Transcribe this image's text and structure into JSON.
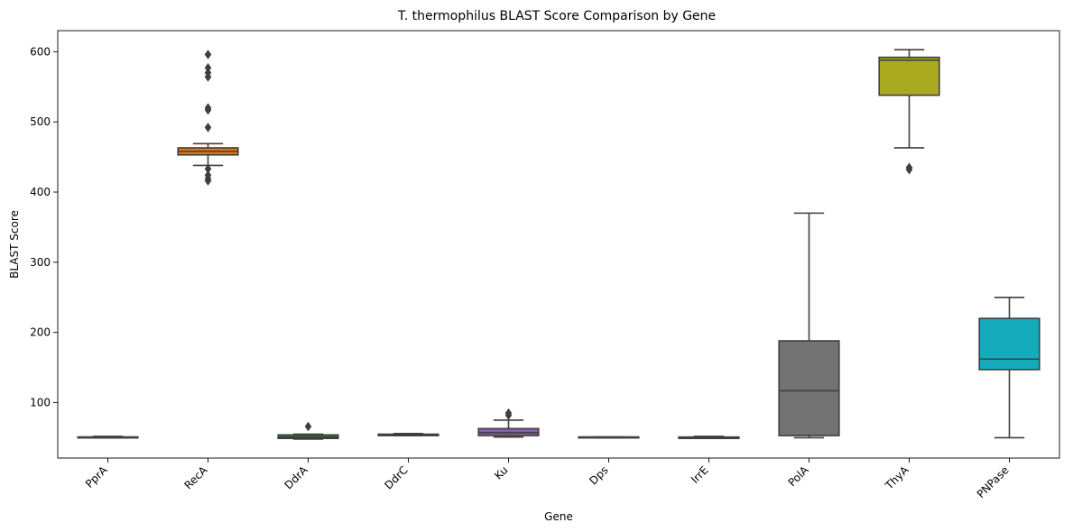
{
  "chart_data": {
    "type": "box",
    "title": "T. thermophilus BLAST Score Comparison by Gene",
    "xlabel": "Gene",
    "ylabel": "BLAST Score",
    "ylim": [
      21,
      630
    ],
    "yticks": [
      100,
      200,
      300,
      400,
      500,
      600
    ],
    "grid": false,
    "categories": [
      "PprA",
      "RecA",
      "DdrA",
      "DdrC",
      "Ku",
      "Dps",
      "IrrE",
      "PolA",
      "ThyA",
      "PNPase"
    ],
    "boxes": [
      {
        "category": "PprA",
        "color": "#1f77b4",
        "whisker_low": 50,
        "q1": 50,
        "median": 51,
        "q3": 51,
        "whisker_high": 52,
        "outliers": []
      },
      {
        "category": "RecA",
        "color": "#ff7f0e",
        "whisker_low": 438,
        "q1": 453,
        "median": 458,
        "q3": 463,
        "whisker_high": 469,
        "outliers": [
          416,
          419,
          424,
          433,
          492,
          517,
          520,
          564,
          570,
          577,
          596
        ]
      },
      {
        "category": "DdrA",
        "color": "#2ca02c",
        "whisker_low": 48,
        "q1": 49,
        "median": 51,
        "q3": 54,
        "whisker_high": 55,
        "outliers": [
          66
        ]
      },
      {
        "category": "DdrC",
        "color": "#d62728",
        "whisker_low": 53,
        "q1": 53,
        "median": 54,
        "q3": 55,
        "whisker_high": 56,
        "outliers": []
      },
      {
        "category": "Ku",
        "color": "#9467bd",
        "whisker_low": 51,
        "q1": 53,
        "median": 57,
        "q3": 63,
        "whisker_high": 75,
        "outliers": [
          82,
          85
        ]
      },
      {
        "category": "Dps",
        "color": "#8c564b",
        "whisker_low": 51,
        "q1": 51,
        "median": 51,
        "q3": 51,
        "whisker_high": 51,
        "outliers": []
      },
      {
        "category": "IrrE",
        "color": "#e377c2",
        "whisker_low": 49,
        "q1": 49,
        "median": 50,
        "q3": 51,
        "whisker_high": 52,
        "outliers": []
      },
      {
        "category": "PolA",
        "color": "#7f7f7f",
        "whisker_low": 50,
        "q1": 53,
        "median": 117,
        "q3": 188,
        "whisker_high": 370,
        "outliers": []
      },
      {
        "category": "ThyA",
        "color": "#bcbd22",
        "whisker_low": 463,
        "q1": 538,
        "median": 588,
        "q3": 592,
        "whisker_high": 603,
        "outliers": [
          432,
          435
        ]
      },
      {
        "category": "PNPase",
        "color": "#17becf",
        "whisker_low": 50,
        "q1": 147,
        "median": 162,
        "q3": 220,
        "whisker_high": 250,
        "outliers": []
      }
    ]
  }
}
